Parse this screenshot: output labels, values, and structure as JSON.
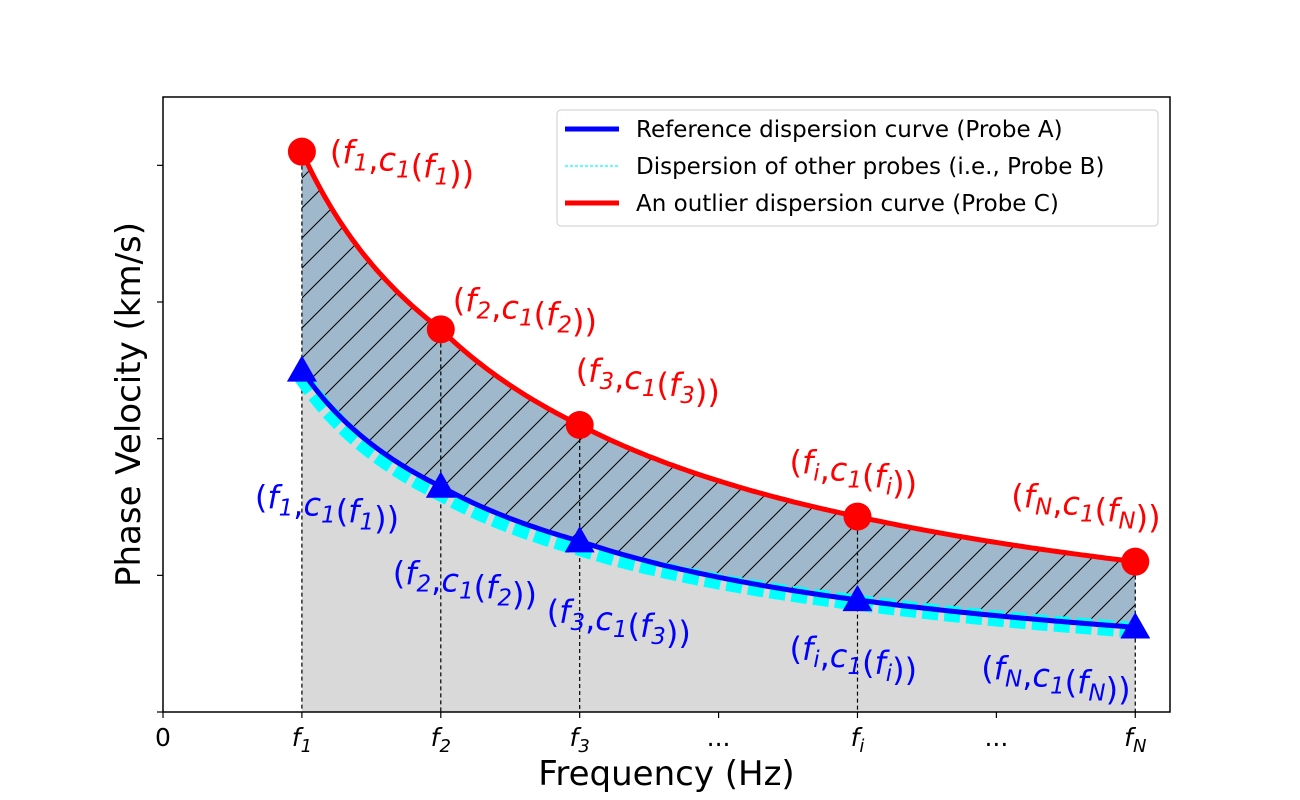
{
  "chart_data": {
    "type": "line",
    "title": "",
    "xlabel": "Frequency (Hz)",
    "ylabel": "Phase Velocity (km/s)",
    "x_tick_labels": [
      {
        "x": 0,
        "base": "0",
        "sub": ""
      },
      {
        "x": 1,
        "base": "f",
        "sub": "1"
      },
      {
        "x": 2,
        "base": "f",
        "sub": "2"
      },
      {
        "x": 3,
        "base": "f",
        "sub": "3"
      },
      {
        "x": 4,
        "base": "...",
        "sub": ""
      },
      {
        "x": 5,
        "base": "f",
        "sub": "i"
      },
      {
        "x": 6,
        "base": "...",
        "sub": ""
      },
      {
        "x": 7,
        "base": "f",
        "sub": "N"
      }
    ],
    "xlim": [
      0,
      7.25
    ],
    "ylim": [
      0,
      4.5
    ],
    "grid": false,
    "legend_position": "top-right",
    "x": [
      1,
      2,
      3,
      5,
      7
    ],
    "series": [
      {
        "name": "Reference dispersion curve (Probe A)",
        "color": "#0000ff",
        "style": "solid",
        "marker": "triangle",
        "point_labels": [
          "1",
          "2",
          "3",
          "i",
          "N"
        ],
        "values": [
          2.5,
          1.65,
          1.25,
          0.82,
          0.62
        ]
      },
      {
        "name": "Dispersion of other probes (i.e., Probe B)",
        "color": "#00ffff",
        "style": "dashed",
        "marker": "none",
        "values": [
          2.45,
          1.6,
          1.2,
          0.8,
          0.6
        ]
      },
      {
        "name": "An outlier dispersion curve (Probe C)",
        "color": "#ff0000",
        "style": "solid",
        "marker": "circle",
        "point_labels": [
          "1",
          "2",
          "3",
          "i",
          "N"
        ],
        "values": [
          4.1,
          2.8,
          2.1,
          1.43,
          1.1
        ]
      }
    ],
    "fills": [
      {
        "between": [
          "An outlier dispersion curve (Probe C)",
          "Reference dispersion curve (Probe A)"
        ],
        "color": "#9fb8cb",
        "hatch": "diagonal"
      },
      {
        "between": [
          "Reference dispersion curve (Probe A)",
          "axis"
        ],
        "color": "#d9d9d9",
        "hatch": "none"
      }
    ],
    "point_annotation": {
      "var": "f",
      "func": "c",
      "func_sub": "1"
    }
  }
}
